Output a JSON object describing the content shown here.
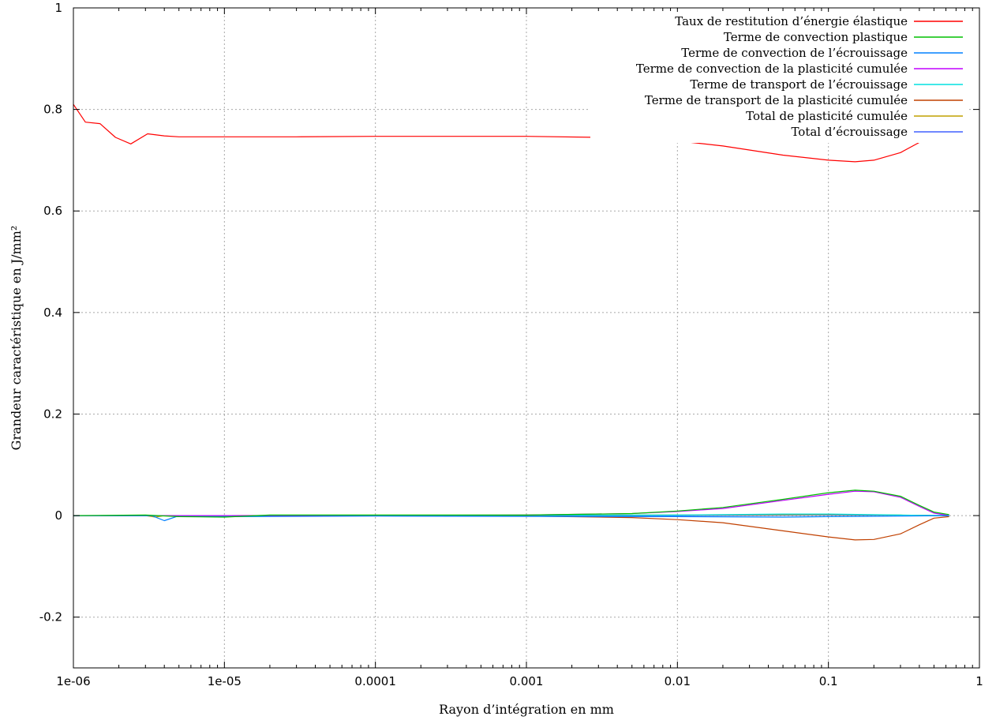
{
  "chart_data": {
    "type": "line",
    "title": "",
    "xlabel": "Rayon d’intégration en mm",
    "ylabel": "Grandeur caractéristique     en J/mm²",
    "x_scale": "log",
    "xlim": [
      1e-06,
      1
    ],
    "ylim": [
      -0.3,
      1
    ],
    "grid": true,
    "legend_position": "top-right",
    "x_ticks": [
      {
        "value": 1e-06,
        "label": "1e-06"
      },
      {
        "value": 1e-05,
        "label": "1e-05"
      },
      {
        "value": 0.0001,
        "label": "0.0001"
      },
      {
        "value": 0.001,
        "label": "0.001"
      },
      {
        "value": 0.01,
        "label": "0.01"
      },
      {
        "value": 0.1,
        "label": "0.1"
      },
      {
        "value": 1,
        "label": "1"
      }
    ],
    "y_ticks": [
      {
        "value": -0.2,
        "label": "-0.2"
      },
      {
        "value": 0,
        "label": "0"
      },
      {
        "value": 0.2,
        "label": "0.2"
      },
      {
        "value": 0.4,
        "label": "0.4"
      },
      {
        "value": 0.6,
        "label": "0.6"
      },
      {
        "value": 0.8,
        "label": "0.8"
      },
      {
        "value": 1,
        "label": "1"
      }
    ],
    "series": [
      {
        "name": "Taux de restitution d’énergie élastique",
        "color": "#ff0000",
        "points": [
          [
            1e-06,
            0.81
          ],
          [
            1.2e-06,
            0.775
          ],
          [
            1.5e-06,
            0.772
          ],
          [
            1.9e-06,
            0.745
          ],
          [
            2.4e-06,
            0.732
          ],
          [
            3.1e-06,
            0.752
          ],
          [
            4e-06,
            0.748
          ],
          [
            5e-06,
            0.746
          ],
          [
            1e-05,
            0.746
          ],
          [
            3e-05,
            0.746
          ],
          [
            0.0001,
            0.747
          ],
          [
            0.001,
            0.747
          ],
          [
            0.003,
            0.745
          ],
          [
            0.006,
            0.742
          ],
          [
            0.01,
            0.738
          ],
          [
            0.02,
            0.728
          ],
          [
            0.05,
            0.71
          ],
          [
            0.1,
            0.7
          ],
          [
            0.15,
            0.697
          ],
          [
            0.2,
            0.7
          ],
          [
            0.3,
            0.715
          ],
          [
            0.4,
            0.735
          ],
          [
            0.5,
            0.745
          ],
          [
            0.63,
            0.748
          ]
        ]
      },
      {
        "name": "Terme de convection plastique",
        "color": "#00c000",
        "points": [
          [
            1e-06,
            0
          ],
          [
            3e-06,
            0.001
          ],
          [
            5e-06,
            -0.002
          ],
          [
            1e-05,
            -0.003
          ],
          [
            2e-05,
            0.001
          ],
          [
            0.001,
            0.001
          ],
          [
            0.005,
            0.004
          ],
          [
            0.01,
            0.009
          ],
          [
            0.02,
            0.016
          ],
          [
            0.05,
            0.032
          ],
          [
            0.1,
            0.045
          ],
          [
            0.15,
            0.05
          ],
          [
            0.2,
            0.048
          ],
          [
            0.3,
            0.038
          ],
          [
            0.4,
            0.02
          ],
          [
            0.5,
            0.007
          ],
          [
            0.63,
            0.002
          ]
        ]
      },
      {
        "name": "Terme de convection de l’écrouissage",
        "color": "#0080ff",
        "points": [
          [
            1e-06,
            0
          ],
          [
            3.3e-06,
            0
          ],
          [
            4e-06,
            -0.01
          ],
          [
            4.8e-06,
            -0.002
          ],
          [
            1e-05,
            -0.002
          ],
          [
            0.0001,
            -0.001
          ],
          [
            0.01,
            -0.002
          ],
          [
            0.05,
            -0.003
          ],
          [
            0.1,
            -0.002
          ],
          [
            0.3,
            -0.001
          ],
          [
            0.63,
            0
          ]
        ]
      },
      {
        "name": "Terme de convection de la plasticité cumulée",
        "color": "#c000ff",
        "points": [
          [
            1e-06,
            0
          ],
          [
            1e-05,
            0
          ],
          [
            0.001,
            0.001
          ],
          [
            0.005,
            0.004
          ],
          [
            0.01,
            0.008
          ],
          [
            0.02,
            0.014
          ],
          [
            0.05,
            0.03
          ],
          [
            0.1,
            0.042
          ],
          [
            0.15,
            0.048
          ],
          [
            0.2,
            0.047
          ],
          [
            0.3,
            0.036
          ],
          [
            0.4,
            0.018
          ],
          [
            0.5,
            0.005
          ],
          [
            0.63,
            0
          ]
        ]
      },
      {
        "name": "Terme de transport de l’écrouissage",
        "color": "#00e0e0",
        "points": [
          [
            1e-06,
            0
          ],
          [
            1e-05,
            0
          ],
          [
            0.01,
            0.001
          ],
          [
            0.05,
            0.003
          ],
          [
            0.1,
            0.003
          ],
          [
            0.3,
            0.001
          ],
          [
            0.63,
            0
          ]
        ]
      },
      {
        "name": "Terme de transport de la plasticité cumulée",
        "color": "#c04000",
        "points": [
          [
            1e-06,
            0
          ],
          [
            1e-05,
            0
          ],
          [
            0.001,
            -0.001
          ],
          [
            0.005,
            -0.004
          ],
          [
            0.01,
            -0.008
          ],
          [
            0.02,
            -0.014
          ],
          [
            0.05,
            -0.03
          ],
          [
            0.1,
            -0.042
          ],
          [
            0.15,
            -0.048
          ],
          [
            0.2,
            -0.047
          ],
          [
            0.3,
            -0.036
          ],
          [
            0.4,
            -0.018
          ],
          [
            0.5,
            -0.005
          ],
          [
            0.63,
            -0.002
          ]
        ]
      },
      {
        "name": "Total de plasticité cumulée",
        "color": "#c0a000",
        "points": [
          [
            1e-06,
            0
          ],
          [
            3e-06,
            0
          ],
          [
            3.5e-06,
            -0.003
          ],
          [
            4e-06,
            0
          ],
          [
            1e-05,
            0
          ],
          [
            0.01,
            0.001
          ],
          [
            0.1,
            0.002
          ],
          [
            0.3,
            0.001
          ],
          [
            0.63,
            0
          ]
        ]
      },
      {
        "name": "Total d’écrouissage",
        "color": "#4060ff",
        "points": [
          [
            1e-06,
            0
          ],
          [
            1e-05,
            0
          ],
          [
            0.01,
            0
          ],
          [
            0.1,
            0.001
          ],
          [
            0.63,
            0
          ]
        ]
      }
    ]
  }
}
